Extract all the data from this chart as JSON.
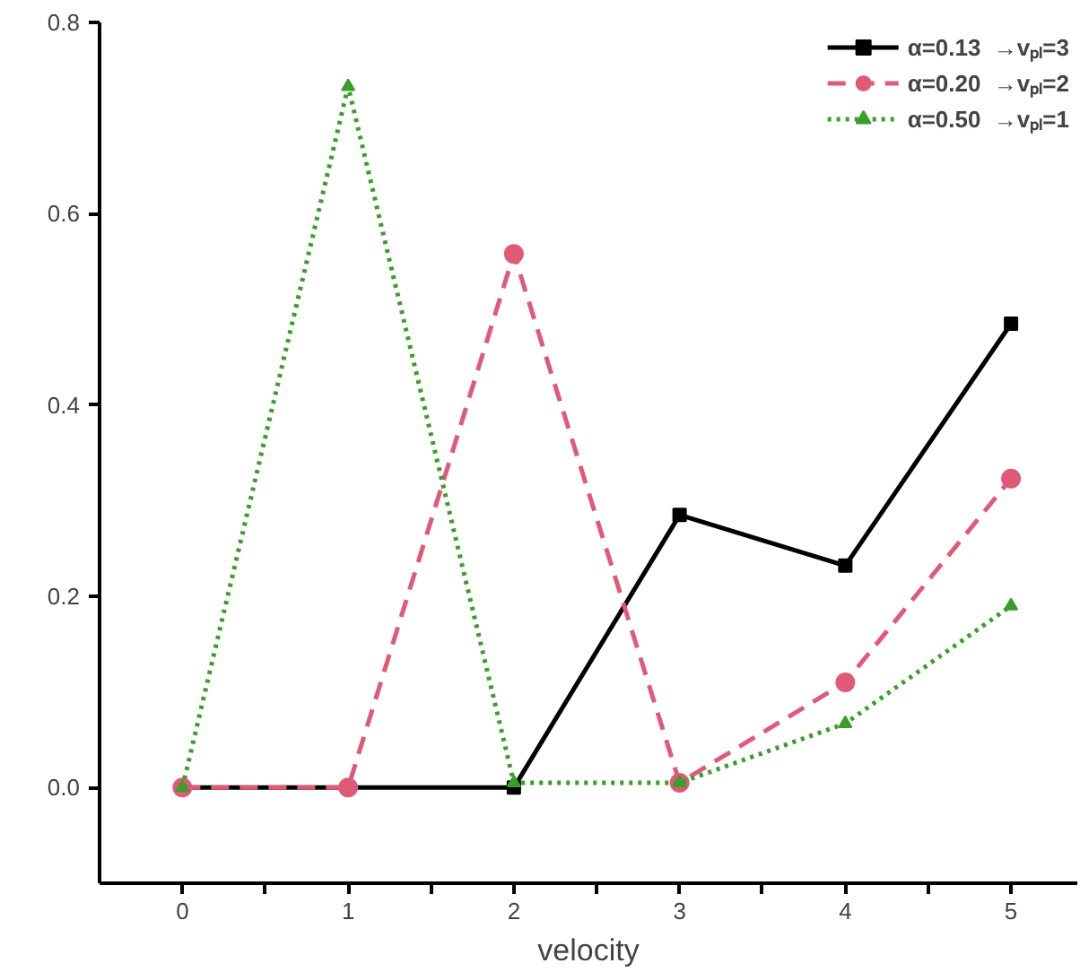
{
  "chart_data": {
    "type": "line",
    "xlabel": "velocity",
    "x": [
      0,
      1,
      2,
      3,
      4,
      5
    ],
    "series": [
      {
        "name": "α=0.13  →vₚₗ=3",
        "color": "#000000",
        "marker": "square",
        "line_style": "solid",
        "values": [
          0,
          0,
          0,
          0.285,
          0.232,
          0.485
        ]
      },
      {
        "name": "α=0.20  →vₚₗ=2",
        "color": "#e05a78",
        "marker": "circle",
        "line_style": "dashed",
        "values": [
          0,
          0,
          0.558,
          0.005,
          0.11,
          0.323
        ]
      },
      {
        "name": "α=0.50  →vₚₗ=1",
        "color": "#3a9e2a",
        "marker": "triangle",
        "line_style": "dotted",
        "values": [
          0,
          0.733,
          0.005,
          0.005,
          0.067,
          0.19
        ]
      }
    ],
    "xlim": [
      -0.5,
      5.4
    ],
    "ylim": [
      -0.1,
      0.8
    ],
    "xticks": [
      0,
      {
        "value": 0.5,
        "label": null
      },
      1,
      {
        "value": 1.5,
        "label": null
      },
      2,
      {
        "value": 2.5,
        "label": null
      },
      3,
      {
        "value": 3.5,
        "label": null
      },
      4,
      {
        "value": 4.5,
        "label": null
      },
      5
    ],
    "yticks": [
      {
        "value": 0,
        "label": "0.0"
      },
      {
        "value": 0.2,
        "label": "0.2"
      },
      {
        "value": 0.4,
        "label": "0.4"
      },
      {
        "value": 0.6,
        "label": "0.6"
      },
      {
        "value": 0.8,
        "label": "0.8"
      }
    ],
    "grid": false,
    "legend": "top right"
  }
}
